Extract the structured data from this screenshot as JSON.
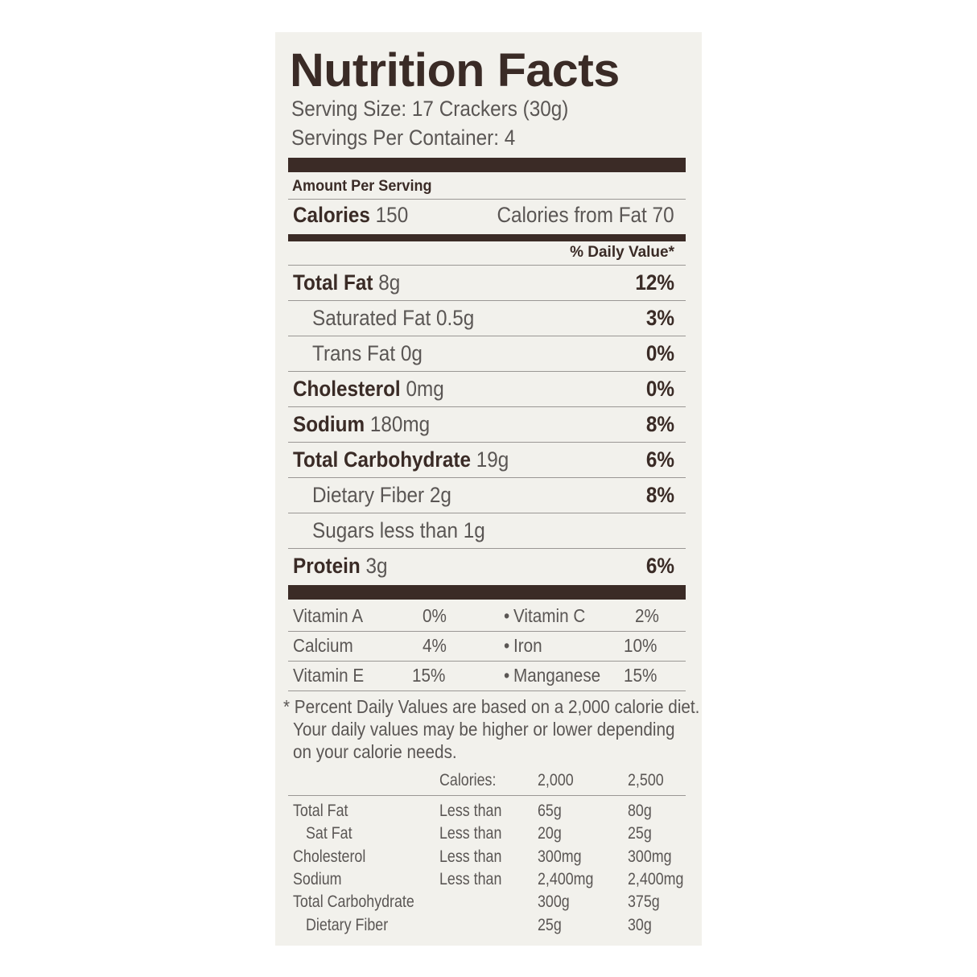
{
  "title": "Nutrition Facts",
  "serving_size": "Serving Size: 17 Crackers (30g)",
  "servings_per_container": "Servings Per Container: 4",
  "amount_per_serving": "Amount Per Serving",
  "calories": {
    "label": "Calories",
    "value": "150",
    "from_fat": "Calories from Fat 70"
  },
  "dv_header": "% Daily Value*",
  "nutrients": [
    {
      "name": "Total Fat",
      "amount": "8g",
      "dv": "12%",
      "bold": true,
      "indent": false
    },
    {
      "name": "Saturated Fat",
      "amount": "0.5g",
      "dv": "3%",
      "bold": false,
      "indent": true
    },
    {
      "name": "Trans Fat",
      "amount": "0g",
      "dv": "0%",
      "bold": false,
      "indent": true
    },
    {
      "name": "Cholesterol",
      "amount": "0mg",
      "dv": "0%",
      "bold": true,
      "indent": false
    },
    {
      "name": "Sodium",
      "amount": "180mg",
      "dv": "8%",
      "bold": true,
      "indent": false
    },
    {
      "name": "Total Carbohydrate",
      "amount": "19g",
      "dv": "6%",
      "bold": true,
      "indent": false
    },
    {
      "name": "Dietary Fiber",
      "amount": "2g",
      "dv": "8%",
      "bold": false,
      "indent": true
    },
    {
      "name": "Sugars less than",
      "amount": "1g",
      "dv": "",
      "bold": false,
      "indent": true
    },
    {
      "name": "Protein",
      "amount": "3g",
      "dv": "6%",
      "bold": true,
      "indent": false
    }
  ],
  "vitamins": [
    {
      "a_name": "Vitamin A",
      "a_dv": "0%",
      "b_name": "Vitamin C",
      "b_dv": "2%"
    },
    {
      "a_name": "Calcium",
      "a_dv": "4%",
      "b_name": "Iron",
      "b_dv": "10%"
    },
    {
      "a_name": "Vitamin E",
      "a_dv": "15%",
      "b_name": "Manganese",
      "b_dv": "15%"
    }
  ],
  "bullet": "•",
  "footnote": [
    "* Percent Daily Values are based on a 2,000 calorie diet.",
    "Your daily values may be higher  or lower depending",
    "on your calorie needs."
  ],
  "dv_table": {
    "header": [
      "",
      "Calories:",
      "2,000",
      "2,500"
    ],
    "rows": [
      [
        "Total Fat",
        "Less than",
        "65g",
        "80g"
      ],
      [
        "Sat Fat",
        "Less than",
        "20g",
        "25g"
      ],
      [
        "Cholesterol",
        "Less than",
        "300mg",
        "300mg"
      ],
      [
        "Sodium",
        "Less than",
        "2,400mg",
        "2,400mg"
      ],
      [
        "Total Carbohydrate",
        "",
        "300g",
        "375g"
      ],
      [
        "Dietary Fiber",
        "",
        "25g",
        "30g"
      ]
    ]
  },
  "colors": {
    "ink": "#3a2b26",
    "text": "#5a5654",
    "panel": "#f2f1ec"
  }
}
